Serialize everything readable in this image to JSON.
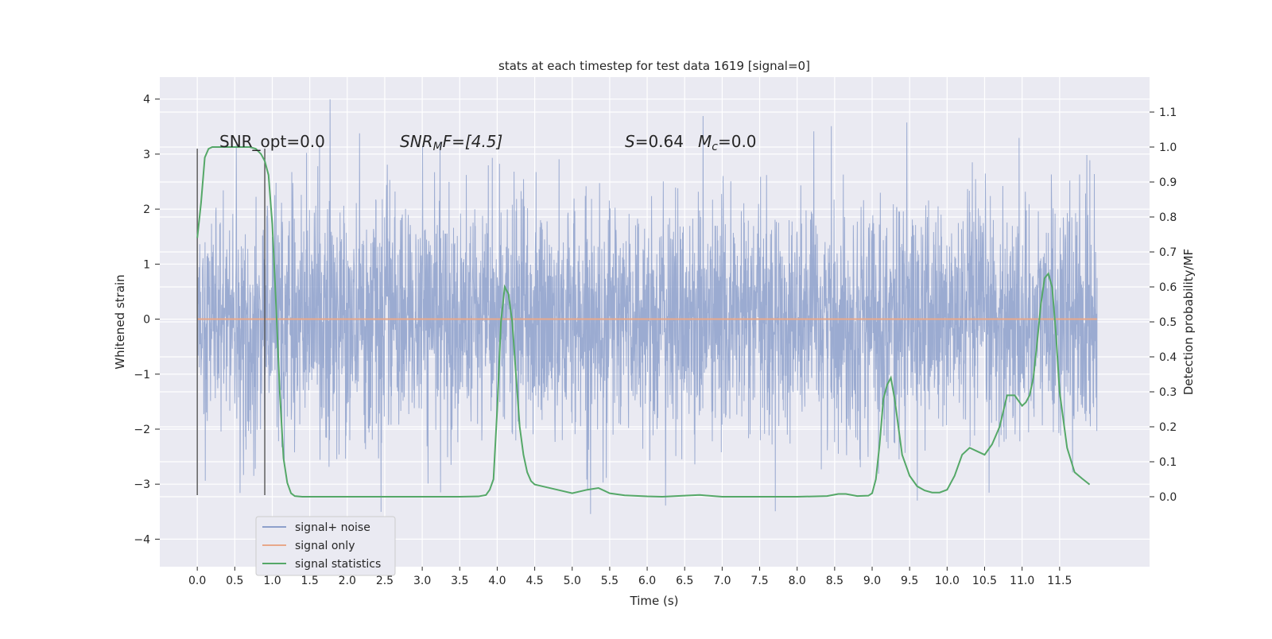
{
  "chart_data": {
    "type": "line",
    "title": "stats at each timestep for test data 1619 [signal=0]",
    "xlabel": "Time (s)",
    "ylabel_left": "Whitened strain",
    "ylabel_right": "Detection probability/MF",
    "xlim": [
      -0.5,
      12.7
    ],
    "ylim_left": [
      -4.5,
      4.4
    ],
    "ylim_right": [
      -0.2,
      1.2
    ],
    "x_ticks": [
      0.0,
      0.5,
      1.0,
      1.5,
      2.0,
      2.5,
      3.0,
      3.5,
      4.0,
      4.5,
      5.0,
      5.5,
      6.0,
      6.5,
      7.0,
      7.5,
      8.0,
      8.5,
      9.0,
      9.5,
      10.0,
      10.5,
      11.0,
      11.5
    ],
    "x_tick_labels": [
      "0.0",
      "0.5",
      "1.0",
      "1.5",
      "2.0",
      "2.5",
      "3.0",
      "3.5",
      "4.0",
      "4.5",
      "5.0",
      "5.5",
      "6.0",
      "6.5",
      "7.0",
      "7.5",
      "8.0",
      "8.5",
      "9.0",
      "9.5",
      "10.0",
      "10.5",
      "11.0",
      "11.5"
    ],
    "y_left_ticks": [
      -4,
      -3,
      -2,
      -1,
      0,
      1,
      2,
      3,
      4
    ],
    "y_left_tick_labels": [
      "−4",
      "−3",
      "−2",
      "−1",
      "0",
      "1",
      "2",
      "3",
      "4"
    ],
    "y_right_ticks": [
      0.0,
      0.1,
      0.2,
      0.3,
      0.4,
      0.5,
      0.6,
      0.7,
      0.8,
      0.9,
      1.0,
      1.1
    ],
    "y_right_tick_labels": [
      "0.0",
      "0.1",
      "0.2",
      "0.3",
      "0.4",
      "0.5",
      "0.6",
      "0.7",
      "0.8",
      "0.9",
      "1.0",
      "1.1"
    ],
    "grid": true,
    "legend_position": "lower-left",
    "series": [
      {
        "name": "signal+ noise",
        "color": "#8da0cb",
        "axis": "left",
        "x_range": [
          0.0,
          12.0
        ],
        "y_range_approx": [
          -4.1,
          4.0
        ],
        "note_values": "dense noise trace"
      },
      {
        "name": "signal only",
        "color": "#e8a88a",
        "axis": "left",
        "x": [
          0.0,
          12.0
        ],
        "y": [
          0.0,
          0.0
        ]
      },
      {
        "name": "signal statistics",
        "color": "#55a868",
        "axis": "right",
        "x": [
          0.0,
          0.05,
          0.1,
          0.15,
          0.2,
          0.3,
          0.5,
          0.7,
          0.78,
          0.85,
          0.9,
          0.95,
          1.0,
          1.05,
          1.1,
          1.15,
          1.2,
          1.25,
          1.3,
          1.4,
          1.6,
          2.0,
          2.5,
          3.0,
          3.5,
          3.75,
          3.85,
          3.9,
          3.95,
          4.0,
          4.05,
          4.1,
          4.15,
          4.2,
          4.25,
          4.3,
          4.35,
          4.4,
          4.45,
          4.5,
          4.6,
          4.8,
          5.0,
          5.2,
          5.35,
          5.5,
          5.7,
          6.0,
          6.2,
          6.5,
          6.7,
          7.0,
          7.5,
          8.0,
          8.4,
          8.55,
          8.65,
          8.8,
          8.95,
          9.0,
          9.05,
          9.1,
          9.15,
          9.2,
          9.25,
          9.3,
          9.35,
          9.4,
          9.5,
          9.6,
          9.7,
          9.8,
          9.9,
          10.0,
          10.1,
          10.2,
          10.3,
          10.4,
          10.5,
          10.6,
          10.7,
          10.8,
          10.9,
          11.0,
          11.05,
          11.1,
          11.15,
          11.2,
          11.25,
          11.3,
          11.35,
          11.4,
          11.45,
          11.5,
          11.6,
          11.7,
          11.8,
          11.9
        ],
        "y": [
          0.74,
          0.84,
          0.97,
          0.995,
          1.0,
          1.0,
          1.0,
          1.0,
          0.995,
          0.98,
          0.96,
          0.92,
          0.78,
          0.55,
          0.3,
          0.11,
          0.04,
          0.01,
          0.002,
          0.0,
          0.0,
          0.0,
          0.0,
          0.0,
          0.0,
          0.001,
          0.005,
          0.02,
          0.05,
          0.25,
          0.5,
          0.6,
          0.58,
          0.5,
          0.35,
          0.2,
          0.12,
          0.07,
          0.045,
          0.035,
          0.03,
          0.02,
          0.01,
          0.02,
          0.025,
          0.01,
          0.004,
          0.001,
          0.0,
          0.003,
          0.005,
          0.0,
          0.0,
          0.0,
          0.002,
          0.008,
          0.008,
          0.002,
          0.003,
          0.01,
          0.05,
          0.15,
          0.28,
          0.32,
          0.34,
          0.28,
          0.2,
          0.12,
          0.06,
          0.03,
          0.018,
          0.012,
          0.012,
          0.02,
          0.06,
          0.12,
          0.14,
          0.13,
          0.12,
          0.15,
          0.2,
          0.29,
          0.29,
          0.26,
          0.27,
          0.29,
          0.34,
          0.44,
          0.55,
          0.625,
          0.638,
          0.6,
          0.47,
          0.3,
          0.14,
          0.07,
          0.052,
          0.035
        ]
      }
    ],
    "vertical_lines": [
      0.0,
      0.9
    ],
    "annotations": [
      {
        "text": "SNR_opt=0.0",
        "x": 0.2,
        "y": 3.1
      },
      {
        "text": "SNR_MF=[4.5]",
        "x": 2.6,
        "y": 3.1
      },
      {
        "text": "S=0.64   M_c=0.0",
        "x": 5.6,
        "y": 3.1
      }
    ]
  },
  "annotation_text": {
    "snr_opt": "SNR_opt=0.0",
    "snr_mf_main": "SNR",
    "snr_mf_sub": "M",
    "snr_mf_rest": "F=[4.5]",
    "s_label": "S",
    "s_value": "=0.64",
    "mc_label": "M",
    "mc_sub": "c",
    "mc_value": "=0.0"
  }
}
